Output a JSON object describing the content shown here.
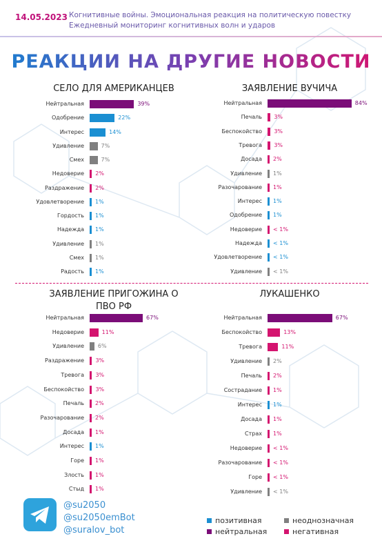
{
  "header": {
    "date": "14.05.2023",
    "line1": "Когнитивные войны. Эмоциональная реакция на политическую повестку",
    "line2": "Ежедневный мониторинг когнитивных волн и ударов"
  },
  "title": "РЕАКЦИИ НА ДРУГИЕ НОВОСТИ",
  "chart_data": [
    {
      "type": "bar",
      "orientation": "horizontal",
      "title": "СЕЛО ДЛЯ АМЕРИКАНЦЕВ",
      "categories": [
        "Нейтральная",
        "Одобрение",
        "Интерес",
        "Удивление",
        "Смех",
        "Недоверие",
        "Раздражение",
        "Удовлетворение",
        "Гордость",
        "Надежда",
        "Удивление",
        "Смех",
        "Радость"
      ],
      "values": [
        39,
        22,
        14,
        7,
        7,
        2,
        2,
        1,
        1,
        1,
        1,
        1,
        1
      ],
      "value_labels": [
        "39%",
        "22%",
        "14%",
        "7%",
        "7%",
        "2%",
        "2%",
        "1%",
        "1%",
        "1%",
        "1%",
        "1%",
        "1%"
      ],
      "colors": [
        "#7b0d78",
        "#1b8fd2",
        "#1b8fd2",
        "#808080",
        "#808080",
        "#d4146f",
        "#d4146f",
        "#1b8fd2",
        "#1b8fd2",
        "#1b8fd2",
        "#808080",
        "#808080",
        "#1b8fd2"
      ]
    },
    {
      "type": "bar",
      "orientation": "horizontal",
      "title": "ЗАЯВЛЕНИЕ ВУЧИЧА",
      "categories": [
        "Нейтральная",
        "Печаль",
        "Беспокойство",
        "Тревога",
        "Досада",
        "Удивление",
        "Разочарование",
        "Интерес",
        "Одобрение",
        "Недоверие",
        "Надежда",
        "Удовлетворение",
        "Удивление"
      ],
      "values": [
        84,
        3,
        3,
        3,
        2,
        1,
        1,
        1,
        1,
        0.5,
        0.5,
        0.5,
        0.5
      ],
      "value_labels": [
        "84%",
        "3%",
        "3%",
        "3%",
        "2%",
        "1%",
        "1%",
        "1%",
        "1%",
        "< 1%",
        "< 1%",
        "< 1%",
        "< 1%"
      ],
      "colors": [
        "#7b0d78",
        "#d4146f",
        "#d4146f",
        "#d4146f",
        "#d4146f",
        "#808080",
        "#d4146f",
        "#1b8fd2",
        "#1b8fd2",
        "#d4146f",
        "#1b8fd2",
        "#1b8fd2",
        "#808080"
      ]
    },
    {
      "type": "bar",
      "orientation": "horizontal",
      "title": "ЗАЯВЛЕНИЕ ПРИГОЖИНА О ПВО РФ",
      "categories": [
        "Нейтральная",
        "Недоверие",
        "Удивление",
        "Раздражение",
        "Тревога",
        "Беспокойство",
        "Печаль",
        "Разочарование",
        "Досада",
        "Интерес",
        "Горе",
        "Злость",
        "Стыд"
      ],
      "values": [
        67,
        11,
        6,
        3,
        3,
        3,
        2,
        2,
        1,
        1,
        1,
        1,
        1
      ],
      "value_labels": [
        "67%",
        "11%",
        "6%",
        "3%",
        "3%",
        "3%",
        "2%",
        "2%",
        "1%",
        "1%",
        "1%",
        "1%",
        "1%"
      ],
      "colors": [
        "#7b0d78",
        "#d4146f",
        "#808080",
        "#d4146f",
        "#d4146f",
        "#d4146f",
        "#d4146f",
        "#d4146f",
        "#d4146f",
        "#1b8fd2",
        "#d4146f",
        "#d4146f",
        "#d4146f"
      ]
    },
    {
      "type": "bar",
      "orientation": "horizontal",
      "title": "ЛУКАШЕНКО",
      "categories": [
        "Нейтральная",
        "Беспокойство",
        "Тревога",
        "Удивление",
        "Печаль",
        "Сострадание",
        "Интерес",
        "Досада",
        "Страх",
        "Недоверие",
        "Разочарование",
        "Горе",
        "Удивление"
      ],
      "values": [
        67,
        13,
        11,
        2,
        2,
        1,
        1,
        1,
        1,
        0.5,
        0.5,
        0.5,
        0.5
      ],
      "value_labels": [
        "67%",
        "13%",
        "11%",
        "2%",
        "2%",
        "1%",
        "1%",
        "1%",
        "1%",
        "< 1%",
        "< 1%",
        "< 1%",
        "< 1%"
      ],
      "colors": [
        "#7b0d78",
        "#d4146f",
        "#d4146f",
        "#808080",
        "#d4146f",
        "#d4146f",
        "#1b8fd2",
        "#d4146f",
        "#d4146f",
        "#d4146f",
        "#d4146f",
        "#d4146f",
        "#808080"
      ]
    }
  ],
  "footer": {
    "handles": [
      "@su2050",
      "@su2050emBot",
      "@suralov_bot"
    ],
    "legend": [
      {
        "name": "позитивная",
        "color": "#1b8fd2"
      },
      {
        "name": "неоднозначная",
        "color": "#808080"
      },
      {
        "name": "нейтральная",
        "color": "#7b0d78"
      },
      {
        "name": "негативная",
        "color": "#d4146f"
      }
    ]
  }
}
